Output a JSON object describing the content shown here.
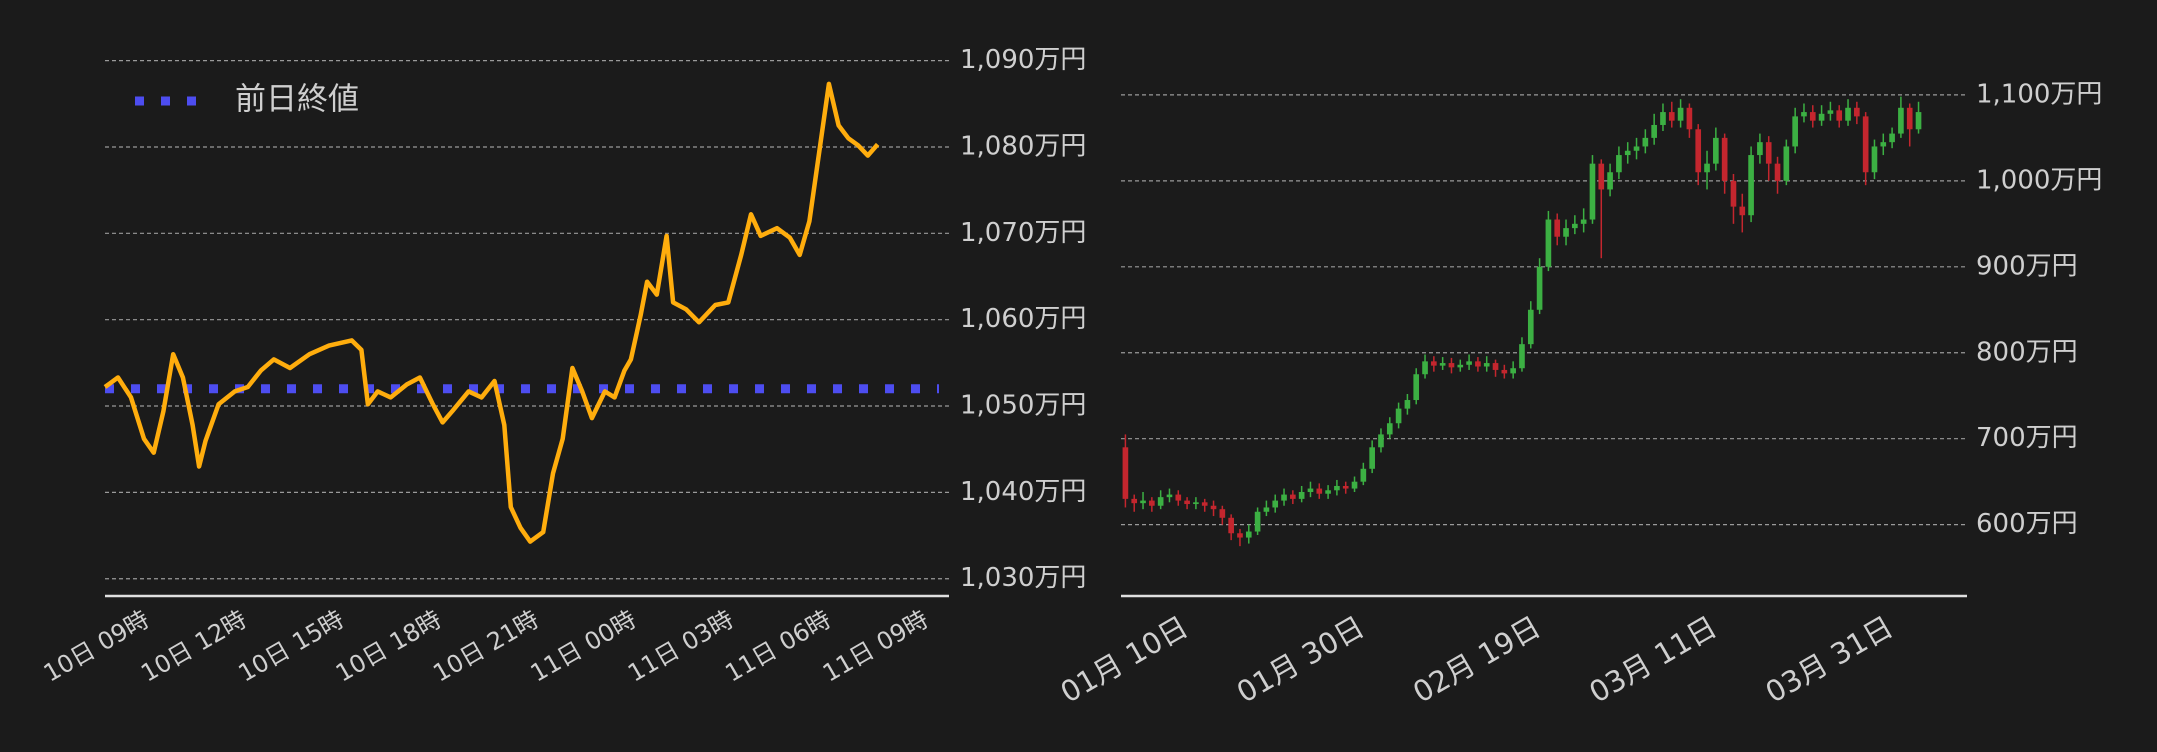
{
  "chart_data": [
    {
      "type": "line",
      "x": [
        8.0,
        8.4,
        8.8,
        9.2,
        9.5,
        9.8,
        10.1,
        10.4,
        10.7,
        10.9,
        11.1,
        11.5,
        12.0,
        12.4,
        12.8,
        13.2,
        13.7,
        14.3,
        14.9,
        15.6,
        15.9,
        16.1,
        16.4,
        16.8,
        17.3,
        17.7,
        18.1,
        18.4,
        18.7,
        19.2,
        19.6,
        20.0,
        20.3,
        20.5,
        20.8,
        21.1,
        21.5,
        21.8,
        22.1,
        22.4,
        22.7,
        23.0,
        23.4,
        23.7,
        24.0,
        24.2,
        24.5,
        24.7,
        25.0,
        25.3,
        25.5,
        25.9,
        26.3,
        26.8,
        27.2,
        27.6,
        27.9,
        28.2,
        28.7,
        29.1,
        29.4,
        29.7,
        30.0,
        30.3,
        30.6,
        30.9,
        31.2,
        31.5,
        31.8
      ],
      "series": [
        {
          "color": "#ffad0d",
          "values": [
            1052.2,
            1053.3,
            1051,
            1046.2,
            1044.6,
            1049.4,
            1056,
            1053.3,
            1047.8,
            1043,
            1046,
            1050.2,
            1051.7,
            1052.2,
            1054.1,
            1055.4,
            1054.4,
            1056,
            1057,
            1057.6,
            1056.5,
            1050.2,
            1051.7,
            1051,
            1052.5,
            1053.3,
            1050.2,
            1048.1,
            1049.4,
            1051.7,
            1051,
            1052.9,
            1047.8,
            1038.3,
            1035.9,
            1034.3,
            1035.4,
            1042.2,
            1046.2,
            1054.4,
            1051.7,
            1048.6,
            1051.7,
            1051,
            1054.1,
            1055.4,
            1060.5,
            1064.4,
            1062.9,
            1069.7,
            1062,
            1061.2,
            1059.7,
            1061.7,
            1062,
            1067.5,
            1072.2,
            1069.7,
            1070.6,
            1069.5,
            1067.5,
            1071.4,
            1079.4,
            1087.3,
            1082.5,
            1081,
            1080.2,
            1079,
            1080.3
          ]
        }
      ],
      "reference_line": {
        "name": "前日終値",
        "value": 1052,
        "color": "#4d4df0"
      },
      "legend": "top-left",
      "xlim": [
        8,
        34
      ],
      "xticks": [
        {
          "value": 9,
          "label": "10日 09時"
        },
        {
          "value": 12,
          "label": "10日 12時"
        },
        {
          "value": 15,
          "label": "10日 15時"
        },
        {
          "value": 18,
          "label": "10日 18時"
        },
        {
          "value": 21,
          "label": "10日 21時"
        },
        {
          "value": 24,
          "label": "11日 00時"
        },
        {
          "value": 27,
          "label": "11日 03時"
        },
        {
          "value": 30,
          "label": "11日 06時"
        },
        {
          "value": 33,
          "label": "11日 09時"
        }
      ],
      "ylim": [
        1028,
        1091
      ],
      "yticks": [
        {
          "value": 1030,
          "label": "1,030万円"
        },
        {
          "value": 1040,
          "label": "1,040万円"
        },
        {
          "value": 1050,
          "label": "1,050万円"
        },
        {
          "value": 1060,
          "label": "1,060万円"
        },
        {
          "value": 1070,
          "label": "1,070万円"
        },
        {
          "value": 1080,
          "label": "1,080万円"
        },
        {
          "value": 1090,
          "label": "1,090万円"
        }
      ],
      "grid": true
    },
    {
      "type": "candlestick",
      "categories": [
        null,
        null,
        null,
        null,
        null,
        null,
        "01月 10日",
        null,
        null,
        null,
        null,
        null,
        null,
        null,
        null,
        null,
        null,
        null,
        null,
        null,
        null,
        null,
        null,
        null,
        null,
        null,
        "01月 30日",
        null,
        null,
        null,
        null,
        null,
        null,
        null,
        null,
        null,
        null,
        null,
        null,
        null,
        null,
        null,
        null,
        null,
        null,
        null,
        "02月 19日",
        null,
        null,
        null,
        null,
        null,
        null,
        null,
        null,
        null,
        null,
        null,
        null,
        null,
        null,
        null,
        null,
        null,
        null,
        null,
        "03月 11日",
        null,
        null,
        null,
        null,
        null,
        null,
        null,
        null,
        null,
        null,
        null,
        null,
        null,
        null,
        null,
        null,
        null,
        null,
        null,
        "03月 31日",
        null,
        null,
        null,
        null
      ],
      "open": [
        690,
        630,
        625,
        628,
        622,
        632,
        635,
        628,
        624,
        626,
        622,
        618,
        608,
        590,
        585,
        592,
        615,
        620,
        628,
        635,
        630,
        638,
        642,
        636,
        640,
        645,
        642,
        650,
        665,
        690,
        705,
        718,
        735,
        745,
        775,
        790,
        785,
        788,
        783,
        786,
        790,
        784,
        788,
        780,
        776,
        782,
        810,
        850,
        900,
        955,
        935,
        945,
        950,
        955,
        1020,
        990,
        1010,
        1030,
        1035,
        1040,
        1050,
        1065,
        1080,
        1070,
        1085,
        1060,
        1010,
        1020,
        1050,
        1000,
        970,
        960,
        1030,
        1045,
        1020,
        1000,
        1040,
        1075,
        1080,
        1070,
        1078,
        1082,
        1070,
        1085,
        1075,
        1010,
        1040,
        1045,
        1055,
        1085,
        1060
      ],
      "high": [
        705,
        635,
        638,
        632,
        640,
        642,
        640,
        632,
        632,
        630,
        628,
        622,
        612,
        595,
        600,
        620,
        628,
        635,
        642,
        640,
        645,
        650,
        648,
        646,
        652,
        650,
        656,
        672,
        698,
        712,
        725,
        742,
        752,
        782,
        798,
        796,
        795,
        794,
        792,
        798,
        795,
        796,
        792,
        786,
        790,
        818,
        860,
        910,
        965,
        962,
        955,
        960,
        968,
        1030,
        1025,
        1020,
        1040,
        1045,
        1050,
        1060,
        1078,
        1090,
        1092,
        1095,
        1090,
        1066,
        1035,
        1062,
        1055,
        1008,
        985,
        1040,
        1055,
        1052,
        1028,
        1048,
        1085,
        1090,
        1088,
        1088,
        1092,
        1088,
        1095,
        1092,
        1080,
        1048,
        1055,
        1062,
        1098,
        1090,
        1092
      ],
      "low": [
        620,
        615,
        618,
        615,
        618,
        626,
        622,
        618,
        618,
        615,
        610,
        600,
        582,
        575,
        578,
        588,
        610,
        614,
        622,
        624,
        626,
        632,
        630,
        630,
        634,
        636,
        638,
        646,
        660,
        684,
        700,
        712,
        728,
        740,
        770,
        778,
        780,
        776,
        778,
        780,
        778,
        778,
        772,
        770,
        770,
        778,
        805,
        845,
        895,
        925,
        925,
        938,
        940,
        950,
        910,
        982,
        1002,
        1020,
        1025,
        1032,
        1042,
        1058,
        1062,
        1062,
        1050,
        995,
        990,
        1012,
        985,
        950,
        940,
        952,
        1020,
        1000,
        985,
        995,
        1032,
        1068,
        1062,
        1064,
        1070,
        1062,
        1064,
        1066,
        995,
        1002,
        1030,
        1038,
        1050,
        1040,
        1055
      ],
      "close": [
        630,
        625,
        628,
        622,
        632,
        635,
        628,
        624,
        626,
        622,
        618,
        608,
        590,
        585,
        592,
        615,
        620,
        628,
        635,
        630,
        638,
        642,
        636,
        640,
        645,
        642,
        650,
        665,
        690,
        705,
        718,
        735,
        745,
        775,
        790,
        785,
        788,
        783,
        786,
        790,
        784,
        788,
        780,
        776,
        782,
        810,
        850,
        900,
        955,
        935,
        945,
        950,
        955,
        1020,
        990,
        1010,
        1030,
        1035,
        1040,
        1050,
        1065,
        1080,
        1070,
        1085,
        1060,
        1010,
        1020,
        1050,
        1000,
        970,
        960,
        1030,
        1045,
        1020,
        1000,
        1040,
        1075,
        1080,
        1070,
        1078,
        1082,
        1070,
        1085,
        1075,
        1010,
        1040,
        1045,
        1055,
        1085,
        1060,
        1080
      ],
      "up_color": "#3cb043",
      "down_color": "#c4262e",
      "ylim": [
        517,
        1115
      ],
      "yticks": [
        {
          "value": 600,
          "label": "600万円"
        },
        {
          "value": 700,
          "label": "700万円"
        },
        {
          "value": 800,
          "label": "800万円"
        },
        {
          "value": 900,
          "label": "900万円"
        },
        {
          "value": 1000,
          "label": "1,000万円"
        },
        {
          "value": 1100,
          "label": "1,100万円"
        }
      ],
      "grid": true
    }
  ]
}
